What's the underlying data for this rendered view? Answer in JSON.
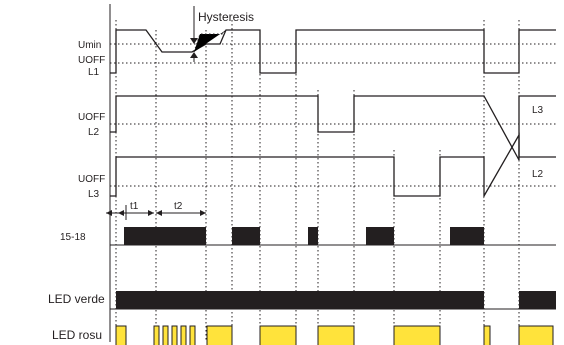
{
  "labels": {
    "umin": "Umin",
    "uoff_1": "UOFF",
    "l1": "L1",
    "uoff_2": "UOFF",
    "l2_left": "L2",
    "uoff_3": "UOFF",
    "l3_left": "L3",
    "l3_right": "L3",
    "l2_right": "L2",
    "hysteresis": "Hysteresis",
    "t1": "t1",
    "t2": "t2",
    "contacts": "15-18",
    "led_green": "LED verde",
    "led_red": "LED rosu"
  },
  "colors": {
    "line": "#231f20",
    "relay_bar": "#231f20",
    "led_green_bar": "#231f20",
    "led_red_pulse": "#ffe33b"
  }
}
